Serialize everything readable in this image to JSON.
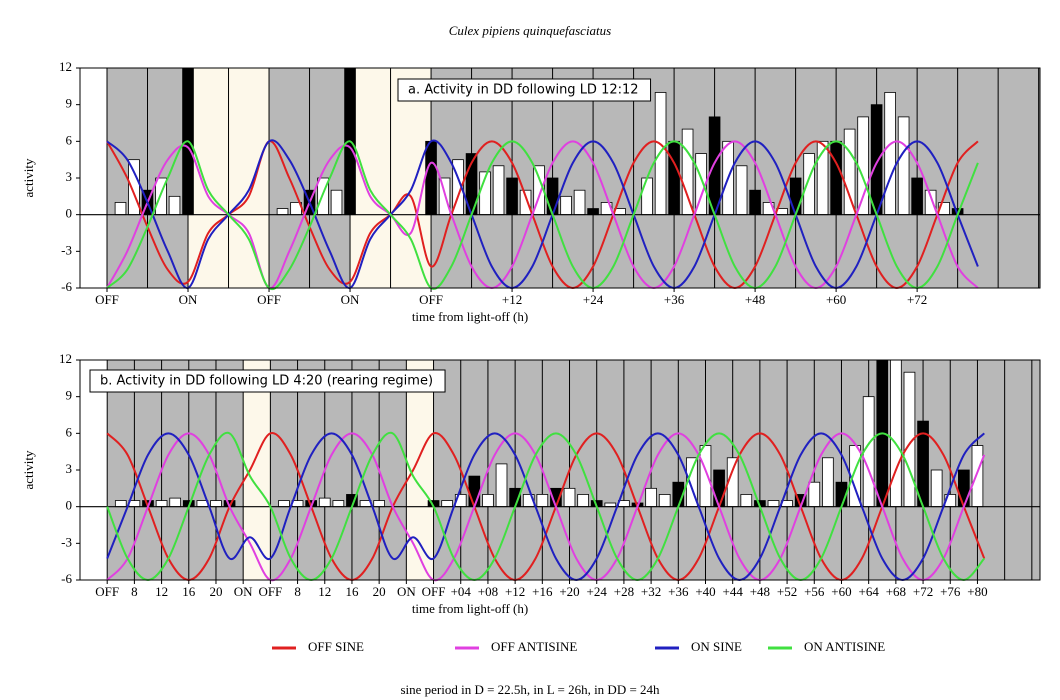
{
  "title": "Culex pipiens quinquefasciatus",
  "footnote": "sine period in D = 22.5h, in L = 26h, in DD = 24h",
  "chart_data": [
    {
      "type": "line",
      "annotation": "a.  Activity in DD following LD 12:12",
      "y_label": "activity",
      "x_label": "time from light-off (h)",
      "xlim": [
        -4,
        138.2
      ],
      "ylim": [
        -6,
        12
      ],
      "yticks": [
        12,
        9,
        6,
        3,
        0,
        -3,
        -6
      ],
      "xticks": [
        {
          "value": 0,
          "label": "OFF"
        },
        {
          "value": 12,
          "label": "ON"
        },
        {
          "value": 24,
          "label": "OFF"
        },
        {
          "value": 36,
          "label": "ON"
        },
        {
          "value": 48,
          "label": "OFF"
        },
        {
          "value": 60,
          "label": "+12"
        },
        {
          "value": 72,
          "label": "+24"
        },
        {
          "value": 84,
          "label": "+36"
        },
        {
          "value": 96,
          "label": "+48"
        },
        {
          "value": 108,
          "label": "+60"
        },
        {
          "value": 120,
          "label": "+72"
        }
      ],
      "xgrid": [
        0,
        6,
        12,
        18,
        24,
        30,
        36,
        42,
        48,
        54,
        60,
        66,
        72,
        78,
        84,
        90,
        96,
        102,
        108,
        114,
        120,
        126,
        132,
        138
      ],
      "light": [
        [
          12,
          24
        ],
        [
          36,
          48
        ]
      ],
      "activity": {
        "x": [
          0,
          2,
          4,
          6,
          8,
          10,
          12,
          14,
          16,
          18,
          20,
          22,
          24,
          26,
          28,
          30,
          32,
          34,
          36,
          38,
          40,
          42,
          44,
          46,
          48,
          50,
          52,
          54,
          56,
          58,
          60,
          62,
          64,
          66,
          68,
          70,
          72,
          74,
          76,
          78,
          80,
          82,
          84,
          86,
          88,
          90,
          92,
          94,
          96,
          98,
          100,
          102,
          104,
          106,
          108,
          110,
          112,
          114,
          116,
          118,
          120,
          122,
          124,
          126,
          128
        ],
        "values": [
          0,
          1,
          4.5,
          2,
          3,
          1.5,
          12,
          0,
          0,
          0,
          0,
          0,
          0,
          0.5,
          1,
          2,
          3,
          2,
          12,
          0,
          0,
          0,
          0,
          0,
          6,
          3,
          4.5,
          5,
          3.5,
          4,
          3,
          2,
          4,
          3,
          1.5,
          2,
          0.5,
          1,
          0.5,
          0,
          3,
          10,
          6,
          7,
          5,
          8,
          6,
          4,
          2,
          1,
          0.5,
          3,
          5,
          6,
          6,
          7,
          8,
          9,
          10,
          8,
          3,
          2,
          1,
          0.5,
          0
        ]
      },
      "x": [
        0,
        3,
        6,
        9,
        12,
        15,
        18,
        21,
        24,
        27,
        30,
        33,
        36,
        39,
        42,
        45,
        48,
        51,
        54,
        57,
        60,
        63,
        66,
        69,
        72,
        75,
        78,
        81,
        84,
        87,
        90,
        93,
        96,
        99,
        102,
        105,
        108,
        111,
        114,
        117,
        120,
        123,
        126,
        129
      ],
      "series": [
        {
          "name": "OFF SINE",
          "color": "#e02020",
          "values": [
            6,
            3,
            -1,
            -4.5,
            -5.5,
            -1.5,
            0,
            1.5,
            6,
            3,
            -1,
            -4.5,
            -5.5,
            -1.5,
            0,
            1.5,
            -4.24,
            0,
            4.24,
            6,
            4.24,
            0,
            -4.24,
            -6,
            -4.24,
            0,
            4.24,
            6,
            4.24,
            0,
            -4.24,
            -6,
            -4.24,
            0,
            4.24,
            6,
            4.24,
            0,
            -4.24,
            -6,
            -4.24,
            0,
            4.24,
            6
          ]
        },
        {
          "name": "OFF ANTISINE",
          "color": "#e040e0",
          "values": [
            -6,
            -3,
            1,
            4.5,
            5.5,
            1.5,
            0,
            -1.5,
            -6,
            -3,
            1,
            4.5,
            5.5,
            1.5,
            0,
            -1.5,
            4.24,
            0,
            -4.24,
            -6,
            -4.24,
            0,
            4.24,
            6,
            4.24,
            0,
            -4.24,
            -6,
            -4.24,
            0,
            4.24,
            6,
            4.24,
            0,
            -4.24,
            -6,
            -4.24,
            0,
            4.24,
            6,
            4.24,
            0,
            -4.24,
            -6
          ]
        },
        {
          "name": "ON SINE",
          "color": "#2020c0",
          "values": [
            6,
            4.5,
            1,
            -3,
            -6,
            -2,
            0,
            2,
            6,
            4.5,
            1,
            -3,
            -6,
            -2,
            0,
            2,
            6,
            4.24,
            0,
            -4.24,
            -6,
            -4.24,
            0,
            4.24,
            6,
            4.24,
            0,
            -4.24,
            -6,
            -4.24,
            0,
            4.24,
            6,
            4.24,
            0,
            -4.24,
            -6,
            -4.24,
            0,
            4.24,
            6,
            4.24,
            0,
            -4.24
          ]
        },
        {
          "name": "ON ANTISINE",
          "color": "#40e040",
          "values": [
            -6,
            -4.5,
            -1,
            3,
            6,
            2,
            0,
            -2,
            -6,
            -4.5,
            -1,
            3,
            6,
            2,
            0,
            -2,
            -6,
            -4.24,
            0,
            4.24,
            6,
            4.24,
            0,
            -4.24,
            -6,
            -4.24,
            0,
            4.24,
            6,
            4.24,
            0,
            -4.24,
            -6,
            -4.24,
            0,
            4.24,
            6,
            4.24,
            0,
            -4.24,
            -6,
            -4.24,
            0,
            4.24
          ]
        }
      ]
    },
    {
      "type": "line",
      "annotation": "b.  Activity in DD following LD 4:20 (rearing regime)",
      "y_label": "activity",
      "x_label": "time from light-off (h)",
      "xlim": [
        -4,
        137.2
      ],
      "ylim": [
        -6,
        12
      ],
      "yticks": [
        12,
        9,
        6,
        3,
        0,
        -3,
        -6
      ],
      "xticks": [
        {
          "value": 0,
          "label": "OFF"
        },
        {
          "value": 4,
          "label": "8"
        },
        {
          "value": 8,
          "label": "12"
        },
        {
          "value": 12,
          "label": "16"
        },
        {
          "value": 16,
          "label": "20"
        },
        {
          "value": 20,
          "label": "ON"
        },
        {
          "value": 24,
          "label": "OFF"
        },
        {
          "value": 28,
          "label": "8"
        },
        {
          "value": 32,
          "label": "12"
        },
        {
          "value": 36,
          "label": "16"
        },
        {
          "value": 40,
          "label": "20"
        },
        {
          "value": 44,
          "label": "ON"
        },
        {
          "value": 48,
          "label": "OFF"
        },
        {
          "value": 52,
          "label": "+04"
        },
        {
          "value": 56,
          "label": "+08"
        },
        {
          "value": 60,
          "label": "+12"
        },
        {
          "value": 64,
          "label": "+16"
        },
        {
          "value": 68,
          "label": "+20"
        },
        {
          "value": 72,
          "label": "+24"
        },
        {
          "value": 76,
          "label": "+28"
        },
        {
          "value": 80,
          "label": "+32"
        },
        {
          "value": 84,
          "label": "+36"
        },
        {
          "value": 88,
          "label": "+40"
        },
        {
          "value": 92,
          "label": "+44"
        },
        {
          "value": 96,
          "label": "+48"
        },
        {
          "value": 100,
          "label": "+52"
        },
        {
          "value": 104,
          "label": "+56"
        },
        {
          "value": 108,
          "label": "+60"
        },
        {
          "value": 112,
          "label": "+64"
        },
        {
          "value": 116,
          "label": "+68"
        },
        {
          "value": 120,
          "label": "+72"
        },
        {
          "value": 124,
          "label": "+76"
        },
        {
          "value": 128,
          "label": "+80"
        }
      ],
      "xgrid": [
        0,
        4,
        8,
        12,
        16,
        20,
        24,
        28,
        32,
        36,
        40,
        44,
        48,
        52,
        56,
        60,
        64,
        68,
        72,
        76,
        80,
        84,
        88,
        92,
        96,
        100,
        104,
        108,
        112,
        116,
        120,
        124,
        128,
        132,
        136
      ],
      "light": [
        [
          20,
          24
        ],
        [
          44,
          48
        ]
      ],
      "activity": {
        "x": [
          0,
          2,
          4,
          6,
          8,
          10,
          12,
          14,
          16,
          18,
          20,
          22,
          24,
          26,
          28,
          30,
          32,
          34,
          36,
          38,
          40,
          42,
          44,
          46,
          48,
          50,
          52,
          54,
          56,
          58,
          60,
          62,
          64,
          66,
          68,
          70,
          72,
          74,
          76,
          78,
          80,
          82,
          84,
          86,
          88,
          90,
          92,
          94,
          96,
          98,
          100,
          102,
          104,
          106,
          108,
          110,
          112,
          114,
          116,
          118,
          120,
          122,
          124,
          126,
          128
        ],
        "values": [
          0,
          0.5,
          0.5,
          0.5,
          0.5,
          0.7,
          0.5,
          0.5,
          0.5,
          0.5,
          0,
          0,
          0,
          0.5,
          0.5,
          0.5,
          0.7,
          0.5,
          1,
          0.5,
          0.5,
          0,
          0,
          0,
          0.5,
          0.5,
          1,
          2.5,
          1,
          3.5,
          1.5,
          1,
          1,
          1.5,
          1.5,
          1,
          0.5,
          0.3,
          0.5,
          0.3,
          1.5,
          1,
          2,
          4,
          5,
          3,
          4,
          1,
          0.5,
          0.5,
          0.5,
          1,
          2,
          4,
          2,
          5,
          9,
          12,
          12,
          11,
          7,
          3,
          1,
          3,
          5
        ]
      },
      "x": [
        0,
        3,
        6,
        9,
        12,
        15,
        18,
        21,
        24,
        27,
        30,
        33,
        36,
        39,
        42,
        45,
        48,
        51,
        54,
        57,
        60,
        63,
        66,
        69,
        72,
        75,
        78,
        81,
        84,
        87,
        90,
        93,
        96,
        99,
        102,
        105,
        108,
        111,
        114,
        117,
        120,
        123,
        126,
        129
      ],
      "series": [
        {
          "color": "#e02020",
          "values": [
            6,
            4.24,
            0,
            -4.24,
            -6,
            -4.24,
            0,
            3,
            6,
            4.24,
            0,
            -4.24,
            -6,
            -4.24,
            0,
            3,
            6,
            4.24,
            0,
            -4.24,
            -6,
            -4.24,
            0,
            4.24,
            6,
            4.24,
            0,
            -4.24,
            -6,
            -4.24,
            0,
            4.24,
            6,
            4.24,
            0,
            -4.24,
            -6,
            -4.24,
            0,
            4.24,
            6,
            4.24,
            0,
            -4.24
          ]
        },
        {
          "color": "#e040e0",
          "values": [
            -6,
            -4.24,
            0,
            4.24,
            6,
            4.24,
            0,
            -3,
            -6,
            -4.24,
            0,
            4.24,
            6,
            4.24,
            0,
            -3,
            -6,
            -4.24,
            0,
            4.24,
            6,
            4.24,
            0,
            -4.24,
            -6,
            -4.24,
            0,
            4.24,
            6,
            4.24,
            0,
            -4.24,
            -6,
            -4.24,
            0,
            4.24,
            6,
            4.24,
            0,
            -4.24,
            -6,
            -4.24,
            0,
            4.24
          ]
        },
        {
          "color": "#2020c0",
          "values": [
            -4.24,
            0,
            4.24,
            6,
            4.24,
            0,
            -4.24,
            -2.5,
            -4.24,
            0,
            4.24,
            6,
            4.24,
            0,
            -4.24,
            -2.5,
            -4.24,
            0,
            4.24,
            6,
            4.24,
            0,
            -4.24,
            -6,
            -4.24,
            0,
            4.24,
            6,
            4.24,
            0,
            -4.24,
            -6,
            -4.24,
            0,
            4.24,
            6,
            4.24,
            0,
            -4.24,
            -6,
            -4.24,
            0,
            4.24,
            6
          ]
        },
        {
          "color": "#40e040",
          "values": [
            0,
            -4.24,
            -6,
            -4.24,
            0,
            4.24,
            6,
            2.5,
            0,
            -4.24,
            -6,
            -4.24,
            0,
            4.24,
            6,
            2.5,
            0,
            -4.24,
            -6,
            -4.24,
            0,
            4.24,
            6,
            4.24,
            0,
            -4.24,
            -6,
            -4.24,
            0,
            4.24,
            6,
            4.24,
            0,
            -4.24,
            -6,
            -4.24,
            0,
            4.24,
            6,
            4.24,
            0,
            -4.24,
            -6,
            -4.24
          ]
        }
      ]
    }
  ]
}
